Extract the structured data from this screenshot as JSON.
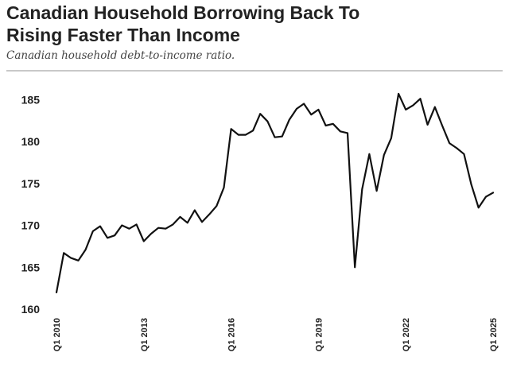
{
  "chart_data": {
    "type": "line",
    "title_lines": [
      "Canadian Household Borrowing Back To",
      "Rising Faster Than Income"
    ],
    "subtitle": "Canadian household debt-to-income ratio.",
    "xlabel": "",
    "ylabel": "",
    "ylim": [
      160,
      187
    ],
    "yticks": [
      160,
      165,
      170,
      175,
      180,
      185
    ],
    "xlim": [
      2010.0,
      2025.0
    ],
    "xticks": [
      {
        "x": 2010.0,
        "label": "Q1 2010"
      },
      {
        "x": 2013.0,
        "label": "Q1 2013"
      },
      {
        "x": 2016.0,
        "label": "Q1 2016"
      },
      {
        "x": 2019.0,
        "label": "Q1 2019"
      },
      {
        "x": 2022.0,
        "label": "Q1 2022"
      },
      {
        "x": 2025.0,
        "label": "Q1 2025"
      }
    ],
    "grid": false,
    "line_color": "#111111",
    "series": [
      {
        "x": [
          2010.0,
          2010.25,
          2010.5,
          2010.75,
          2011.0,
          2011.25,
          2011.5,
          2011.75,
          2012.0,
          2012.25,
          2012.5,
          2012.75,
          2013.0,
          2013.25,
          2013.5,
          2013.75,
          2014.0,
          2014.25,
          2014.5,
          2014.75,
          2015.0,
          2015.25,
          2015.5,
          2015.75,
          2016.0,
          2016.25,
          2016.5,
          2016.75,
          2017.0,
          2017.25,
          2017.5,
          2017.75,
          2018.0,
          2018.25,
          2018.5,
          2018.75,
          2019.0,
          2019.25,
          2019.5,
          2019.75,
          2020.0,
          2020.25,
          2020.5,
          2020.75,
          2021.0,
          2021.25,
          2021.5,
          2021.75,
          2022.0,
          2022.25,
          2022.5,
          2022.75,
          2023.0,
          2023.25,
          2023.5,
          2023.75,
          2024.0,
          2024.25,
          2024.5,
          2024.75,
          2025.0
        ],
        "values": [
          162.0,
          166.7,
          166.1,
          165.8,
          167.1,
          169.3,
          169.9,
          168.5,
          168.8,
          170.0,
          169.6,
          170.1,
          168.1,
          169.0,
          169.7,
          169.6,
          170.1,
          171.0,
          170.3,
          171.8,
          170.4,
          171.3,
          172.3,
          174.5,
          181.5,
          180.8,
          180.8,
          181.3,
          183.3,
          182.4,
          180.5,
          180.6,
          182.6,
          183.9,
          184.5,
          183.2,
          183.8,
          181.9,
          182.1,
          181.2,
          181.0,
          165.0,
          174.3,
          178.5,
          174.1,
          178.4,
          180.4,
          185.7,
          183.8,
          184.3,
          185.1,
          182.0,
          184.1,
          181.9,
          179.8,
          179.2,
          178.5,
          174.9,
          172.1,
          173.4,
          173.9
        ]
      }
    ]
  }
}
